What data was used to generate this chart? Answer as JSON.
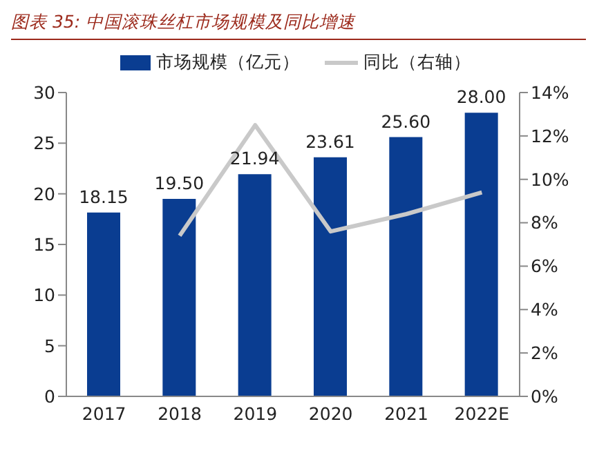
{
  "chart_data": {
    "type": "bar",
    "title": "图表 35:  中国滚珠丝杠市场规模及同比增速",
    "categories": [
      "2017",
      "2018",
      "2019",
      "2020",
      "2021",
      "2022E"
    ],
    "series": [
      {
        "name": "市场规模（亿元）",
        "color": "#0a3d91",
        "values": [
          18.15,
          19.5,
          21.94,
          23.61,
          25.6,
          28.0
        ],
        "value_labels": [
          "18.15",
          "19.50",
          "21.94",
          "23.61",
          "25.60",
          "28.00"
        ]
      },
      {
        "name": "同比（右轴）",
        "type": "line",
        "axis": "y2",
        "color": "#c9c9c9",
        "values": [
          null,
          7.4,
          12.5,
          7.6,
          8.4,
          9.4
        ]
      }
    ],
    "ylim": [
      0,
      30
    ],
    "yticks": [
      0,
      5,
      10,
      15,
      20,
      25,
      30
    ],
    "y2lim": [
      0,
      14
    ],
    "y2ticks": [
      {
        "value": 0,
        "label": "0%"
      },
      {
        "value": 2,
        "label": "2%"
      },
      {
        "value": 4,
        "label": "4%"
      },
      {
        "value": 6,
        "label": "6%"
      },
      {
        "value": 8,
        "label": "8%"
      },
      {
        "value": 10,
        "label": "10%"
      },
      {
        "value": 12,
        "label": "12%"
      },
      {
        "value": 14,
        "label": "14%"
      }
    ],
    "legend": "top",
    "grid": false,
    "marker": "none",
    "line_style": "solid"
  }
}
